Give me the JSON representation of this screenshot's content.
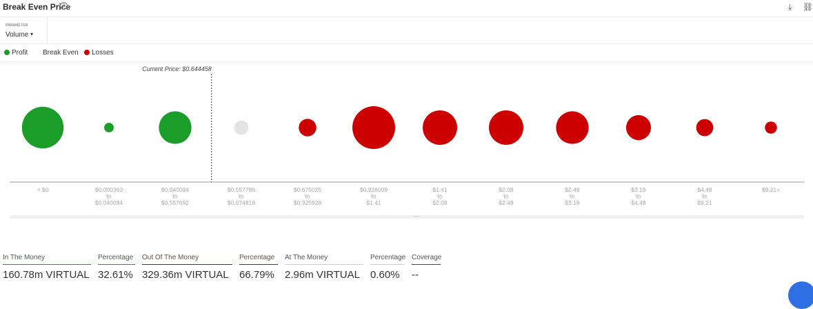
{
  "header": {
    "title": "Break Even Price"
  },
  "parameter": {
    "label": "PARAMETER",
    "value": "Volume"
  },
  "legend": [
    {
      "label": "Profit",
      "color": "#1a9e29"
    },
    {
      "label": "Break Even",
      "color": "#e3e3e3"
    },
    {
      "label": "Losses",
      "color": "#cc0000"
    }
  ],
  "chart_data": {
    "type": "scatter",
    "title": "Break Even Price",
    "current_price_label": "Current Price: $0.644458",
    "current_price_after_category": 3,
    "categories": [
      [
        "< $0"
      ],
      [
        "$0.000363",
        "to",
        "$0.040084"
      ],
      [
        "$0.040084",
        "to",
        "$0.557692"
      ],
      [
        "$0.557786",
        "to",
        "$0.674818"
      ],
      [
        "$0.675025",
        "to",
        "$0.925928"
      ],
      [
        "$0.926009",
        "to",
        "$1.41"
      ],
      [
        "$1.41",
        "to",
        "$2.08"
      ],
      [
        "$2.08",
        "to",
        "$2.48"
      ],
      [
        "$2.48",
        "to",
        "$3.19"
      ],
      [
        "$3.19",
        "to",
        "$4.48"
      ],
      [
        "$4.48",
        "to",
        "$9.21"
      ],
      [
        "$9.21+"
      ]
    ],
    "status": [
      "Profit",
      "Profit",
      "Profit",
      "Break Even",
      "Losses",
      "Losses",
      "Losses",
      "Losses",
      "Losses",
      "Losses",
      "Losses",
      "Losses"
    ],
    "volume_relative": [
      0.95,
      0.05,
      0.58,
      0.11,
      0.17,
      1.0,
      0.65,
      0.65,
      0.58,
      0.34,
      0.16,
      0.08
    ],
    "colors": {
      "Profit": "#1a9e29",
      "Break Even": "#e3e3e3",
      "Losses": "#cc0000"
    }
  },
  "stats": [
    {
      "label": "In The Money",
      "value": "160.78m VIRTUAL",
      "color": "#1a9e29"
    },
    {
      "label": "Percentage",
      "value": "32.61%",
      "color": "#1a9e29"
    },
    {
      "label": "Out Of The Money",
      "value": "329.36m VIRTUAL",
      "color": "#cc0000"
    },
    {
      "label": "Percentage",
      "value": "66.79%",
      "color": "#cc0000"
    },
    {
      "label": "At The Money",
      "value": "2.96m VIRTUAL",
      "color": "#cccccc"
    },
    {
      "label": "Percentage",
      "value": "0.60%",
      "color": "#cccccc"
    },
    {
      "label": "Coverage",
      "value": "--",
      "color": "#2145b5"
    }
  ]
}
